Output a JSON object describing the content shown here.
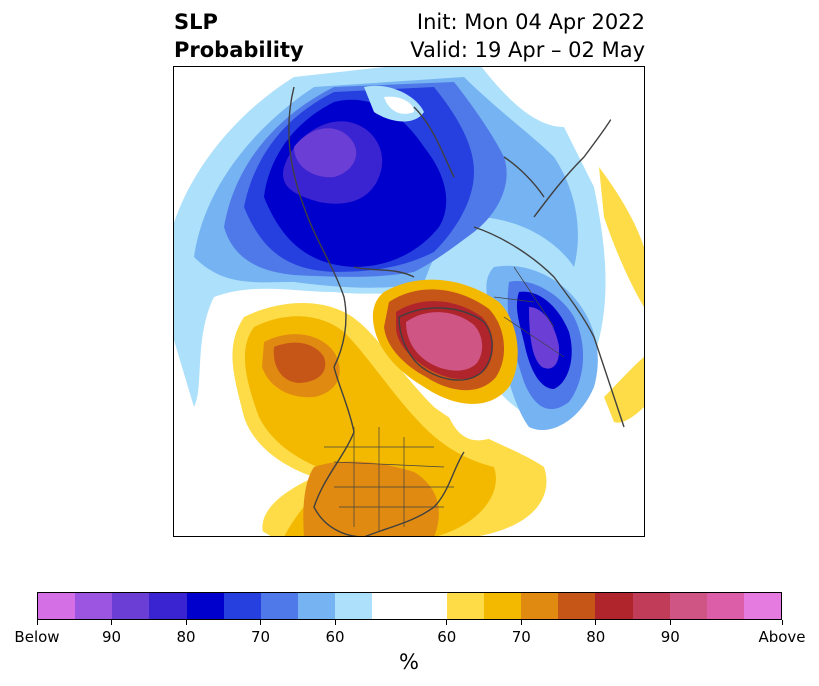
{
  "title": {
    "left_line1": "SLP",
    "left_line2": "Probability",
    "right_line1": "Init: Mon 04 Apr 2022",
    "right_line2": "Valid: 19 Apr – 02 May"
  },
  "colorbar": {
    "colors": [
      "#d56fe6",
      "#9b55e0",
      "#6b3fd6",
      "#3a23d0",
      "#0000cc",
      "#2640e0",
      "#4f79e8",
      "#76b3f2",
      "#ade0fb",
      "#ffffff",
      "#ffffff",
      "#fddc48",
      "#f3b900",
      "#e08a12",
      "#c65618",
      "#b0242b",
      "#c03c58",
      "#cf5585",
      "#dc5ea8",
      "#e57ae0"
    ],
    "tick_labels": [
      "Below",
      "90",
      "80",
      "70",
      "60",
      "60",
      "70",
      "80",
      "90",
      "Above"
    ],
    "units_label": "%"
  },
  "map": {
    "projection": "north-polar-stereographic",
    "features": [
      {
        "name": "below-normal-north-america-arctic",
        "category": "below",
        "peak_percent": "90"
      },
      {
        "name": "below-normal-north-atlantic-europe",
        "category": "below",
        "peak_percent": "80"
      },
      {
        "name": "above-normal-greenland",
        "category": "above",
        "peak_percent": "90"
      },
      {
        "name": "above-normal-north-pacific",
        "category": "above",
        "peak_percent": "70"
      },
      {
        "name": "above-normal-canada-usa",
        "category": "above",
        "peak_percent": "70"
      }
    ]
  }
}
